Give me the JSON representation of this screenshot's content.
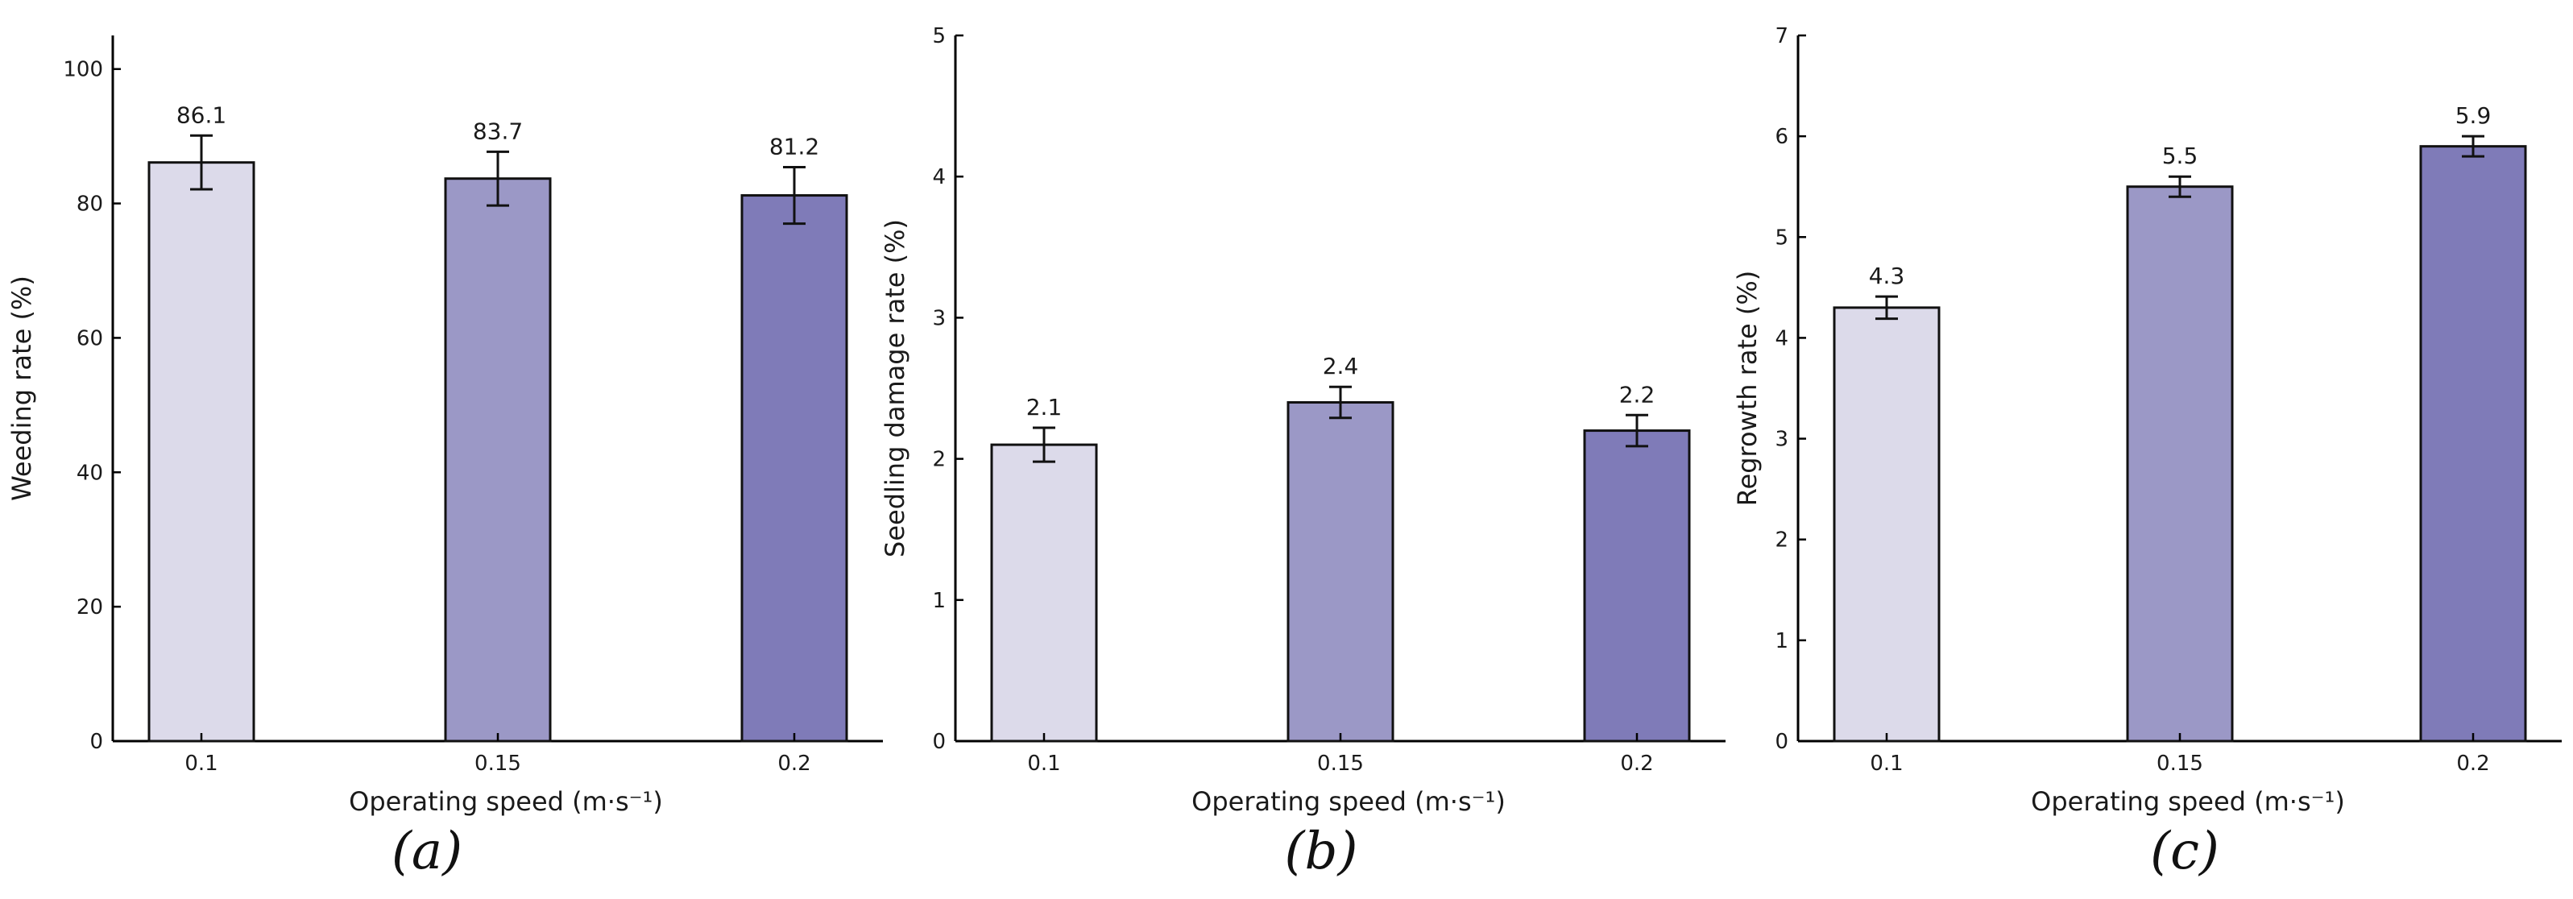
{
  "chart_data": [
    {
      "type": "bar",
      "panel_label": "(a)",
      "categories": [
        "0.1",
        "0.15",
        "0.2"
      ],
      "values": [
        86.1,
        83.7,
        81.2
      ],
      "value_labels": [
        "86.1",
        "83.7",
        "81.2"
      ],
      "errors": [
        4.0,
        4.0,
        4.2
      ],
      "xlabel": "Operating speed (m·s⁻¹)",
      "ylabel": "Weeding rate (%)",
      "ylim": [
        0,
        105
      ],
      "yticks": [
        0,
        20,
        40,
        60,
        80,
        100
      ],
      "ytick_labels": [
        "0",
        "20",
        "40",
        "60",
        "80",
        "100"
      ],
      "colors": [
        "#dcdaea",
        "#9b98c6",
        "#7f7bb8"
      ],
      "grid": false
    },
    {
      "type": "bar",
      "panel_label": "(b)",
      "categories": [
        "0.1",
        "0.15",
        "0.2"
      ],
      "values": [
        2.1,
        2.4,
        2.2
      ],
      "value_labels": [
        "2.1",
        "2.4",
        "2.2"
      ],
      "errors": [
        0.12,
        0.11,
        0.11
      ],
      "xlabel": "Operating speed (m·s⁻¹)",
      "ylabel": "Seedling damage rate (%)",
      "ylim": [
        0,
        5
      ],
      "yticks": [
        0,
        1,
        2,
        3,
        4,
        5
      ],
      "ytick_labels": [
        "0",
        "1",
        "2",
        "3",
        "4",
        "5"
      ],
      "colors": [
        "#dcdaea",
        "#9b98c6",
        "#7f7bb8"
      ],
      "grid": false
    },
    {
      "type": "bar",
      "panel_label": "(c)",
      "categories": [
        "0.1",
        "0.15",
        "0.2"
      ],
      "values": [
        4.3,
        5.5,
        5.9
      ],
      "value_labels": [
        "4.3",
        "5.5",
        "5.9"
      ],
      "errors": [
        0.11,
        0.1,
        0.1
      ],
      "xlabel": "Operating speed (m·s⁻¹)",
      "ylabel": "Regrowth rate (%)",
      "ylim": [
        0,
        7
      ],
      "yticks": [
        0,
        1,
        2,
        3,
        4,
        5,
        6,
        7
      ],
      "ytick_labels": [
        "0",
        "1",
        "2",
        "3",
        "4",
        "5",
        "6",
        "7"
      ],
      "colors": [
        "#dcdaea",
        "#9b98c6",
        "#7f7bb8"
      ],
      "grid": false
    }
  ]
}
